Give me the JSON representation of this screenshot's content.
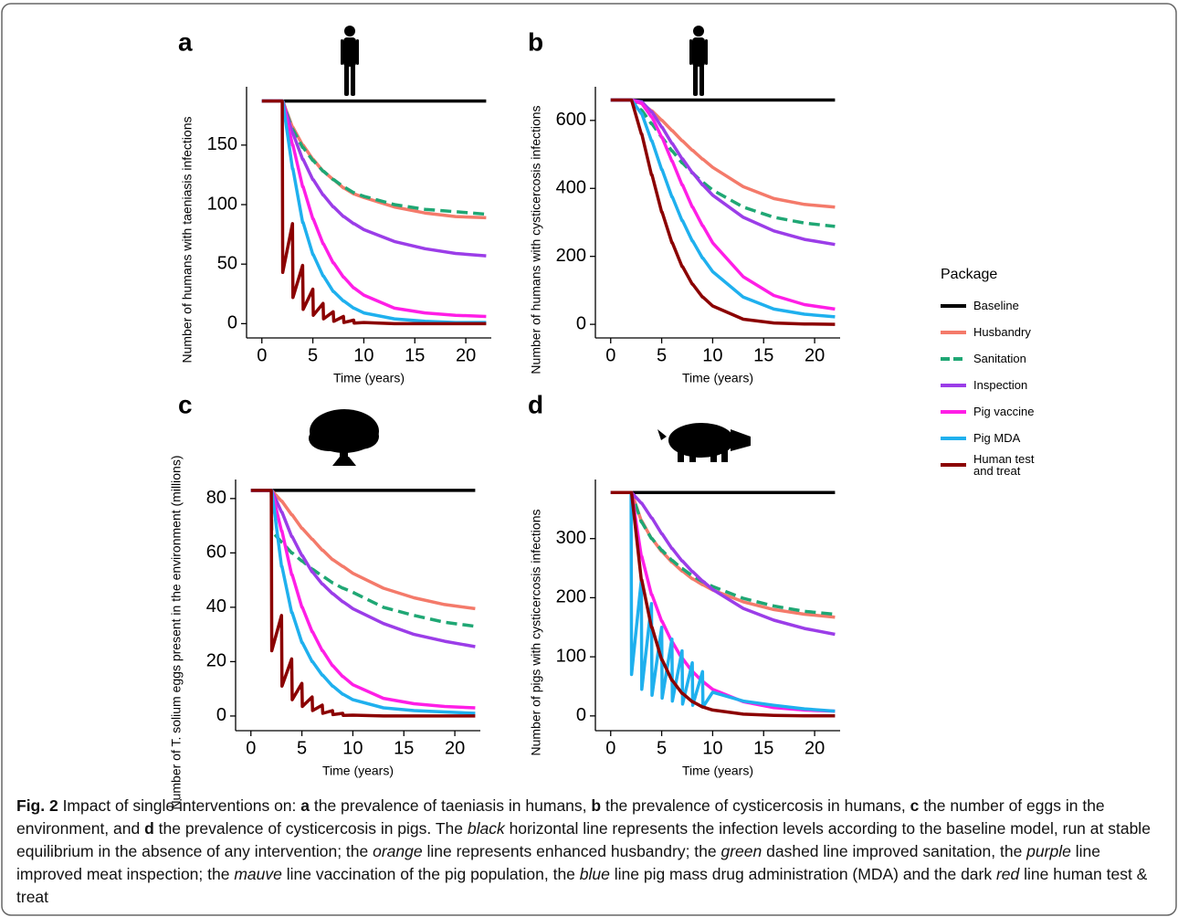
{
  "chart_data": [
    {
      "type": "line",
      "panel": "a",
      "ylabel": "Number of humans with taeniasis infections",
      "xlabel": "Time (years)",
      "xlim": [
        -1.5,
        22.5
      ],
      "xticks": [
        0,
        5,
        10,
        15,
        20
      ],
      "ylim": [
        -12,
        199
      ],
      "yticks": [
        0,
        50,
        100,
        150
      ],
      "x": [
        0,
        2,
        2.05,
        3,
        3.05,
        4,
        4.05,
        5,
        5.05,
        6,
        6.05,
        7,
        7.05,
        8,
        8.05,
        9,
        9.05,
        10,
        13,
        16,
        19,
        22
      ],
      "series": [
        {
          "values": [
            187,
            187,
            187,
            187,
            187,
            187,
            187,
            187,
            187,
            187,
            187,
            187,
            187,
            187,
            187,
            187,
            187,
            187,
            187,
            187,
            187,
            187
          ]
        },
        {
          "values": [
            187,
            187,
            187,
            165,
            165,
            150,
            150,
            138,
            138,
            128,
            128,
            121,
            121,
            114,
            114,
            109,
            109,
            106,
            98,
            93,
            90,
            89
          ]
        },
        {
          "values": [
            187,
            187,
            187,
            163,
            163,
            148,
            148,
            137,
            137,
            128,
            128,
            121,
            121,
            115,
            115,
            110,
            110,
            107,
            100,
            96,
            94,
            92
          ]
        },
        {
          "values": [
            187,
            187,
            187,
            160,
            160,
            138,
            138,
            121,
            121,
            108,
            108,
            98,
            98,
            90,
            90,
            84,
            84,
            79,
            69,
            63,
            59,
            57
          ]
        },
        {
          "values": [
            187,
            187,
            187,
            150,
            150,
            115,
            115,
            88,
            88,
            67,
            67,
            51,
            51,
            39,
            39,
            30,
            30,
            24,
            13,
            9,
            7,
            6
          ]
        },
        {
          "values": [
            187,
            187,
            187,
            130,
            130,
            85,
            85,
            58,
            58,
            40,
            40,
            27,
            27,
            19,
            19,
            13,
            13,
            9,
            4,
            2,
            1,
            1
          ]
        },
        {
          "values": [
            187,
            187,
            43,
            84,
            22,
            49,
            12,
            29,
            7,
            17,
            4,
            10,
            2,
            6,
            1,
            3,
            0.5,
            1,
            0,
            0,
            0,
            0
          ]
        }
      ]
    },
    {
      "type": "line",
      "panel": "b",
      "ylabel": "Number of humans with cysticercosis infections",
      "xlabel": "Time (years)",
      "xlim": [
        -1.5,
        22.5
      ],
      "xticks": [
        0,
        5,
        10,
        15,
        20
      ],
      "ylim": [
        -40,
        699
      ],
      "yticks": [
        0,
        200,
        400,
        600
      ],
      "x": [
        0,
        2,
        2.05,
        3,
        3.05,
        4,
        4.05,
        5,
        5.05,
        6,
        6.05,
        7,
        7.05,
        8,
        8.05,
        9,
        9.05,
        10,
        13,
        16,
        19,
        22
      ],
      "series": [
        {
          "values": [
            660,
            660,
            660,
            660,
            660,
            660,
            660,
            660,
            660,
            660,
            660,
            660,
            660,
            660,
            660,
            660,
            660,
            660,
            660,
            660,
            660,
            660
          ]
        },
        {
          "values": [
            660,
            660,
            660,
            650,
            650,
            628,
            628,
            600,
            600,
            570,
            570,
            540,
            540,
            512,
            512,
            486,
            486,
            462,
            405,
            370,
            353,
            345
          ]
        },
        {
          "values": [
            660,
            660,
            660,
            630,
            630,
            590,
            590,
            550,
            550,
            510,
            510,
            475,
            475,
            445,
            445,
            418,
            418,
            395,
            345,
            315,
            298,
            288
          ]
        },
        {
          "values": [
            660,
            660,
            660,
            655,
            655,
            625,
            625,
            580,
            580,
            532,
            532,
            487,
            487,
            446,
            446,
            410,
            410,
            380,
            315,
            275,
            250,
            235
          ]
        },
        {
          "values": [
            660,
            660,
            660,
            650,
            650,
            610,
            610,
            550,
            550,
            480,
            480,
            410,
            410,
            345,
            345,
            290,
            290,
            240,
            140,
            85,
            58,
            45
          ]
        },
        {
          "values": [
            660,
            660,
            660,
            620,
            620,
            540,
            540,
            455,
            455,
            375,
            375,
            305,
            305,
            245,
            245,
            195,
            195,
            155,
            80,
            45,
            30,
            22
          ]
        },
        {
          "values": [
            660,
            660,
            660,
            560,
            560,
            440,
            440,
            330,
            330,
            240,
            240,
            170,
            170,
            118,
            118,
            80,
            80,
            54,
            15,
            4,
            1,
            0
          ]
        }
      ]
    },
    {
      "type": "line",
      "panel": "c",
      "ylabel": "Number of T. solium eggs present in the environment (millions)",
      "xlabel": "Time (years)",
      "xlim": [
        -1.5,
        22.5
      ],
      "xticks": [
        0,
        5,
        10,
        15,
        20
      ],
      "ylim": [
        -5.4,
        87
      ],
      "yticks": [
        0,
        20,
        40,
        60,
        80
      ],
      "x": [
        0,
        2,
        2.05,
        3,
        3.05,
        4,
        4.05,
        5,
        5.05,
        6,
        6.05,
        7,
        7.05,
        8,
        8.05,
        9,
        9.05,
        10,
        13,
        16,
        19,
        22
      ],
      "series": [
        {
          "values": [
            83,
            83,
            83,
            83,
            83,
            83,
            83,
            83,
            83,
            83,
            83,
            83,
            83,
            83,
            83,
            83,
            83,
            83,
            83,
            83,
            83,
            83
          ]
        },
        {
          "values": [
            83,
            83,
            83,
            79,
            79,
            74,
            74,
            69,
            69,
            65,
            65,
            61,
            61,
            57.5,
            57.5,
            55,
            55,
            52.5,
            47,
            43.5,
            41,
            39.5
          ]
        },
        {
          "values": [
            83,
            83,
            68,
            64,
            64,
            60,
            60,
            57,
            57,
            54,
            54,
            51.5,
            51.5,
            49,
            49,
            47,
            47,
            45.5,
            40,
            37,
            34.5,
            33
          ]
        },
        {
          "values": [
            83,
            83,
            83,
            75,
            75,
            66,
            66,
            59,
            59,
            53,
            53,
            48.5,
            48.5,
            45,
            45,
            42,
            42,
            39.5,
            34,
            30,
            27.5,
            25.5
          ]
        },
        {
          "values": [
            83,
            83,
            83,
            68,
            68,
            52,
            52,
            40,
            40,
            31,
            31,
            24,
            24,
            18.5,
            18.5,
            14.5,
            14.5,
            11.5,
            6.5,
            4.5,
            3.5,
            3
          ]
        },
        {
          "values": [
            83,
            83,
            83,
            55,
            55,
            38,
            38,
            27,
            27,
            20,
            20,
            15,
            15,
            11,
            11,
            8,
            8,
            6,
            3,
            2,
            1.5,
            1
          ]
        },
        {
          "values": [
            83,
            83,
            24,
            37,
            11,
            21,
            6,
            12,
            3.5,
            7,
            2,
            4,
            1,
            2,
            0.5,
            1,
            0.2,
            0.3,
            0,
            0,
            0,
            0
          ]
        }
      ]
    },
    {
      "type": "line",
      "panel": "d",
      "ylabel": "Number of pigs with cysticercosis infections",
      "xlabel": "Time (years)",
      "xlim": [
        -1.5,
        22.5
      ],
      "xticks": [
        0,
        5,
        10,
        15,
        20
      ],
      "ylim": [
        -25,
        400
      ],
      "yticks": [
        0,
        100,
        200,
        300
      ],
      "x": [
        0,
        2,
        2.05,
        3,
        3.05,
        4,
        4.05,
        5,
        5.05,
        6,
        6.05,
        7,
        7.05,
        8,
        8.05,
        9,
        9.05,
        10,
        13,
        16,
        19,
        22
      ],
      "series": [
        {
          "values": [
            378,
            378,
            378,
            378,
            378,
            378,
            378,
            378,
            378,
            378,
            378,
            378,
            378,
            378,
            378,
            378,
            378,
            378,
            378,
            378,
            378,
            378
          ]
        },
        {
          "values": [
            378,
            378,
            378,
            330,
            330,
            300,
            300,
            278,
            278,
            260,
            260,
            245,
            245,
            232,
            232,
            222,
            222,
            213,
            193,
            180,
            172,
            167
          ]
        },
        {
          "values": [
            378,
            378,
            378,
            328,
            328,
            300,
            300,
            280,
            280,
            263,
            263,
            249,
            249,
            237,
            237,
            227,
            227,
            219,
            199,
            186,
            177,
            172
          ]
        },
        {
          "values": [
            378,
            378,
            378,
            360,
            360,
            335,
            335,
            308,
            308,
            283,
            283,
            262,
            262,
            244,
            244,
            228,
            228,
            214,
            182,
            162,
            148,
            138
          ]
        },
        {
          "values": [
            378,
            378,
            378,
            270,
            270,
            205,
            205,
            160,
            160,
            125,
            125,
            97,
            97,
            75,
            75,
            58,
            58,
            45,
            24,
            14,
            10,
            8
          ]
        },
        {
          "values": [
            378,
            378,
            70,
            230,
            45,
            190,
            35,
            150,
            30,
            130,
            25,
            110,
            20,
            90,
            18,
            75,
            15,
            40,
            25,
            18,
            12,
            8
          ]
        },
        {
          "values": [
            378,
            378,
            378,
            230,
            230,
            150,
            150,
            95,
            95,
            60,
            60,
            38,
            38,
            24,
            24,
            15,
            15,
            10,
            3,
            1,
            0,
            0
          ]
        }
      ]
    }
  ],
  "legend": {
    "title": "Package",
    "entries": [
      {
        "name": "Baseline",
        "color": "#000000",
        "dashed": false
      },
      {
        "name": "Husbandry",
        "color": "#f47a6a",
        "dashed": false
      },
      {
        "name": "Sanitation",
        "color": "#1fa774",
        "dashed": true
      },
      {
        "name": "Inspection",
        "color": "#9b3de8",
        "dashed": false
      },
      {
        "name": "Pig vaccine",
        "color": "#ff1ee6",
        "dashed": false
      },
      {
        "name": "Pig MDA",
        "color": "#1fb0ee",
        "dashed": false
      },
      {
        "name": "Human test and treat",
        "color": "#8b0000",
        "dashed": false
      }
    ]
  },
  "caption": [
    "Fig. 2",
    " Impact of single interventions on: ",
    "a",
    " the prevalence of taeniasis in humans, ",
    "b",
    " the prevalence of cysticercosis in humans, ",
    "c",
    " the number of eggs in the environment, and ",
    "d",
    " the prevalence of cysticercosis in pigs. The ",
    "black",
    " horizontal line represents the infection levels according to the baseline model, run at stable equilibrium in the absence of any intervention; the ",
    "orange",
    " line represents enhanced husbandry; the ",
    "green",
    " dashed line improved sanitation, the ",
    "purple",
    " line improved meat inspection; the ",
    "mauve",
    " line vaccination of the pig population, the ",
    "blue",
    " line pig mass drug administration (MDA) and the dark ",
    "red",
    " line human test & treat"
  ]
}
